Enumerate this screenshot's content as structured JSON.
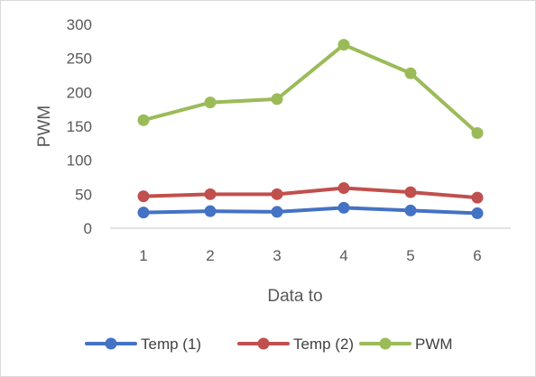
{
  "chart_data": {
    "type": "line",
    "title": "",
    "xlabel": "Data to",
    "ylabel": "PWM",
    "categories": [
      "1",
      "2",
      "3",
      "4",
      "5",
      "6"
    ],
    "ylim": [
      0,
      300
    ],
    "yticks": [
      0,
      50,
      100,
      150,
      200,
      250,
      300
    ],
    "grid": false,
    "legend_position": "bottom",
    "series": [
      {
        "name": "Temp (1)",
        "color": "#4472c4",
        "values": [
          23,
          25,
          24,
          30,
          26,
          22
        ]
      },
      {
        "name": "Temp (2)",
        "color": "#c0504d",
        "values": [
          47,
          50,
          50,
          59,
          53,
          45
        ]
      },
      {
        "name": "PWM",
        "color": "#9bbb59",
        "values": [
          159,
          185,
          190,
          270,
          228,
          140
        ]
      }
    ]
  }
}
